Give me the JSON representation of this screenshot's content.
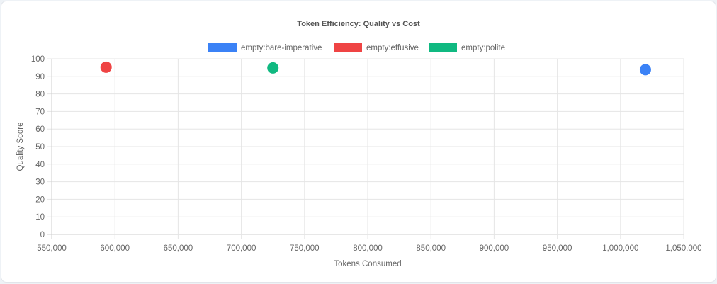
{
  "chart_data": {
    "type": "scatter",
    "title": "Token Efficiency: Quality vs Cost",
    "xlabel": "Tokens Consumed",
    "ylabel": "Quality Score",
    "xlim": [
      550000,
      1050000
    ],
    "ylim": [
      0,
      100
    ],
    "x_ticks": [
      "550,000",
      "600,000",
      "650,000",
      "700,000",
      "750,000",
      "800,000",
      "850,000",
      "900,000",
      "950,000",
      "1,000,000",
      "1,050,000"
    ],
    "y_ticks": [
      "0",
      "10",
      "20",
      "30",
      "40",
      "50",
      "60",
      "70",
      "80",
      "90",
      "100"
    ],
    "grid": true,
    "legend_position": "top",
    "series": [
      {
        "name": "empty:bare-imperative",
        "color": "#3b82f6",
        "points": [
          {
            "x": 1019700,
            "y": 93.8
          }
        ]
      },
      {
        "name": "empty:effusive",
        "color": "#ef4444",
        "points": [
          {
            "x": 593000,
            "y": 95.2
          }
        ]
      },
      {
        "name": "empty:polite",
        "color": "#10b981",
        "points": [
          {
            "x": 725000,
            "y": 94.8
          }
        ]
      }
    ]
  }
}
